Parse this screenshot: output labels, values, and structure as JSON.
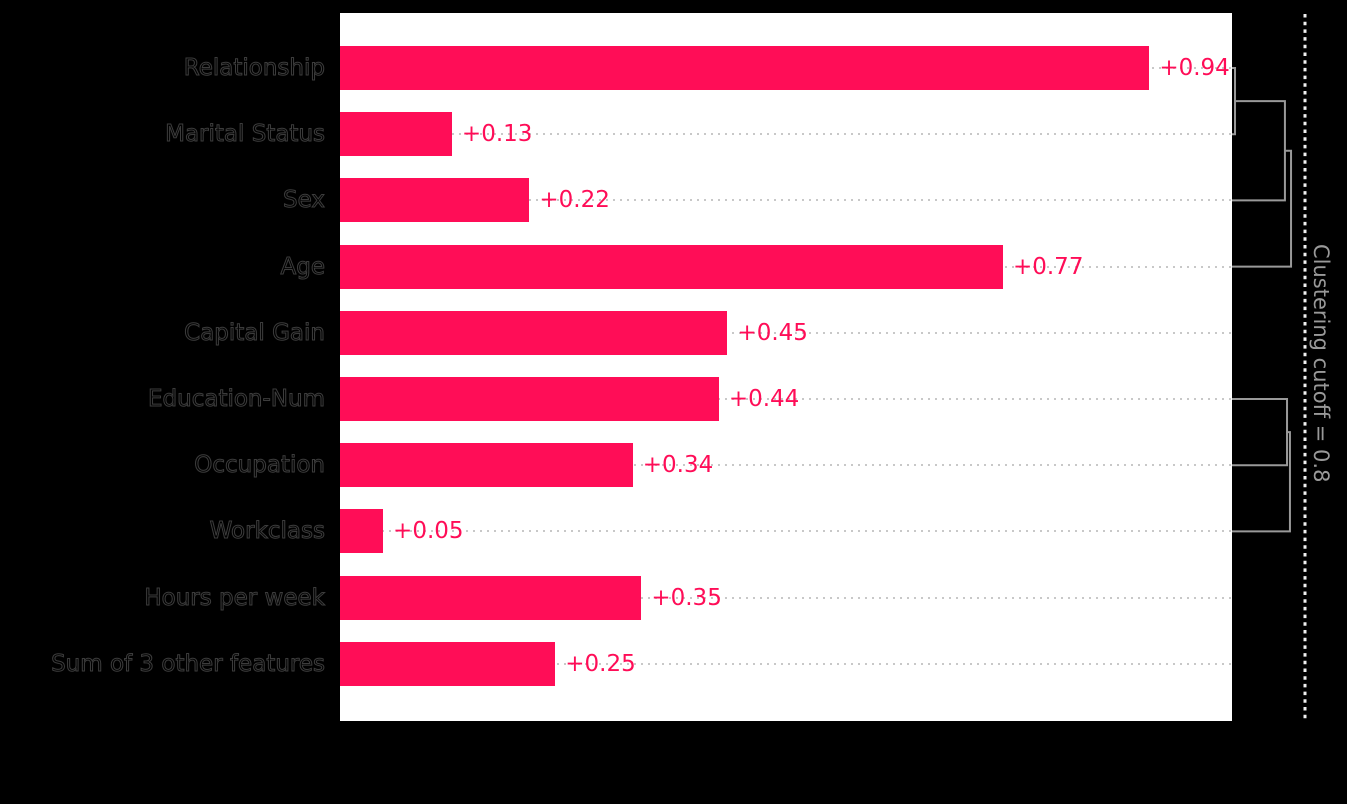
{
  "chart_data": {
    "type": "bar",
    "orientation": "horizontal",
    "title": "",
    "xlabel": "",
    "ylabel": "",
    "categories": [
      "Relationship",
      "Marital Status",
      "Sex",
      "Age",
      "Capital Gain",
      "Education-Num",
      "Occupation",
      "Workclass",
      "Hours per week",
      "Sum of 3 other features"
    ],
    "values": [
      0.94,
      0.13,
      0.22,
      0.77,
      0.45,
      0.44,
      0.34,
      0.05,
      0.35,
      0.25
    ],
    "value_labels": [
      "+0.94",
      "+0.13",
      "+0.22",
      "+0.77",
      "+0.45",
      "+0.44",
      "+0.34",
      "+0.05",
      "+0.35",
      "+0.25"
    ],
    "xlim": [
      0,
      1.036
    ],
    "grid": "horizontal-dotted",
    "legend_position": "none"
  },
  "clustering": {
    "label": "Clustering cutoff = 0.8",
    "cutoff": 0.8,
    "merges": [
      {
        "a": {
          "type": "leaf",
          "row": 0
        },
        "b": {
          "type": "leaf",
          "row": 1
        },
        "distance": 0.033
      },
      {
        "a": {
          "type": "merge",
          "idx": 0
        },
        "b": {
          "type": "leaf",
          "row": 2
        },
        "distance": 0.58
      },
      {
        "a": {
          "type": "merge",
          "idx": 1
        },
        "b": {
          "type": "leaf",
          "row": 3
        },
        "distance": 0.647
      },
      {
        "a": {
          "type": "leaf",
          "row": 5
        },
        "b": {
          "type": "leaf",
          "row": 6
        },
        "distance": 0.603
      },
      {
        "a": {
          "type": "merge",
          "idx": 3
        },
        "b": {
          "type": "leaf",
          "row": 7
        },
        "distance": 0.635
      }
    ]
  },
  "colors": {
    "background": "#000000",
    "plot_background": "#ffffff",
    "bar": "#ff0d57",
    "value_label": "#ff0d57",
    "gridline": "#c8c8c8",
    "dendrogram": "#999999",
    "cutoff_line": "#f0f0f0",
    "cutoff_text": "#999999",
    "tick_label": "#000000"
  }
}
